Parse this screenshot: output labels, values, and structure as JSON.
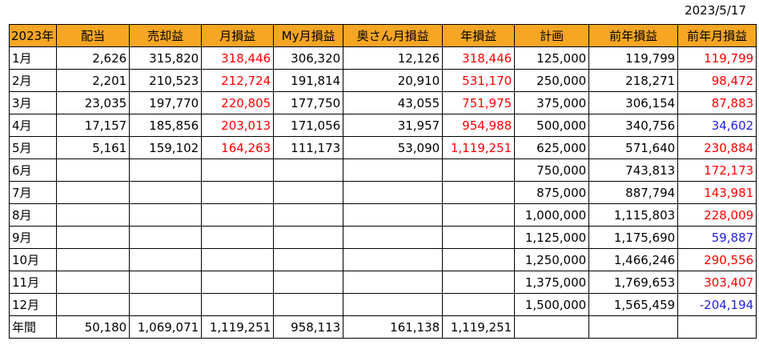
{
  "date": "2023/5/17",
  "headers": [
    "2023年",
    "配当",
    "売却益",
    "月損益",
    "My月損益",
    "奥さん月損益",
    "年損益",
    "計画",
    "前年損益",
    "前年月損益"
  ],
  "rows": [
    {
      "label": "1月",
      "cells": [
        "2,626",
        "315,820",
        "318,446",
        "306,320",
        "12,126",
        "318,446",
        "125,000",
        "119,799",
        "119,799"
      ],
      "last_color": "red"
    },
    {
      "label": "2月",
      "cells": [
        "2,201",
        "210,523",
        "212,724",
        "191,814",
        "20,910",
        "531,170",
        "250,000",
        "218,271",
        "98,472"
      ],
      "last_color": "red"
    },
    {
      "label": "3月",
      "cells": [
        "23,035",
        "197,770",
        "220,805",
        "177,750",
        "43,055",
        "751,975",
        "375,000",
        "306,154",
        "87,883"
      ],
      "last_color": "red"
    },
    {
      "label": "4月",
      "cells": [
        "17,157",
        "185,856",
        "203,013",
        "171,056",
        "31,957",
        "954,988",
        "500,000",
        "340,756",
        "34,602"
      ],
      "last_color": "blue"
    },
    {
      "label": "5月",
      "cells": [
        "5,161",
        "159,102",
        "164,263",
        "111,173",
        "53,090",
        "1,119,251",
        "625,000",
        "571,640",
        "230,884"
      ],
      "last_color": "red"
    },
    {
      "label": "6月",
      "cells": [
        "",
        "",
        "",
        "",
        "",
        "",
        "750,000",
        "743,813",
        "172,173"
      ],
      "last_color": "red"
    },
    {
      "label": "7月",
      "cells": [
        "",
        "",
        "",
        "",
        "",
        "",
        "875,000",
        "887,794",
        "143,981"
      ],
      "last_color": "red"
    },
    {
      "label": "8月",
      "cells": [
        "",
        "",
        "",
        "",
        "",
        "",
        "1,000,000",
        "1,115,803",
        "228,009"
      ],
      "last_color": "red"
    },
    {
      "label": "9月",
      "cells": [
        "",
        "",
        "",
        "",
        "",
        "",
        "1,125,000",
        "1,175,690",
        "59,887"
      ],
      "last_color": "blue"
    },
    {
      "label": "10月",
      "cells": [
        "",
        "",
        "",
        "",
        "",
        "",
        "1,250,000",
        "1,466,246",
        "290,556"
      ],
      "last_color": "red"
    },
    {
      "label": "11月",
      "cells": [
        "",
        "",
        "",
        "",
        "",
        "",
        "1,375,000",
        "1,769,653",
        "303,407"
      ],
      "last_color": "red"
    },
    {
      "label": "12月",
      "cells": [
        "",
        "",
        "",
        "",
        "",
        "",
        "1,500,000",
        "1,565,459",
        "-204,194"
      ],
      "last_color": "blue"
    }
  ],
  "total": {
    "label": "年間",
    "cells": [
      "50,180",
      "1,069,071",
      "1,119,251",
      "958,113",
      "161,138",
      "1,119,251",
      "",
      "",
      ""
    ]
  },
  "colors": {
    "header_bg": "#f6a623",
    "positive": "#ff0000",
    "negative": "#1f1fe0"
  }
}
